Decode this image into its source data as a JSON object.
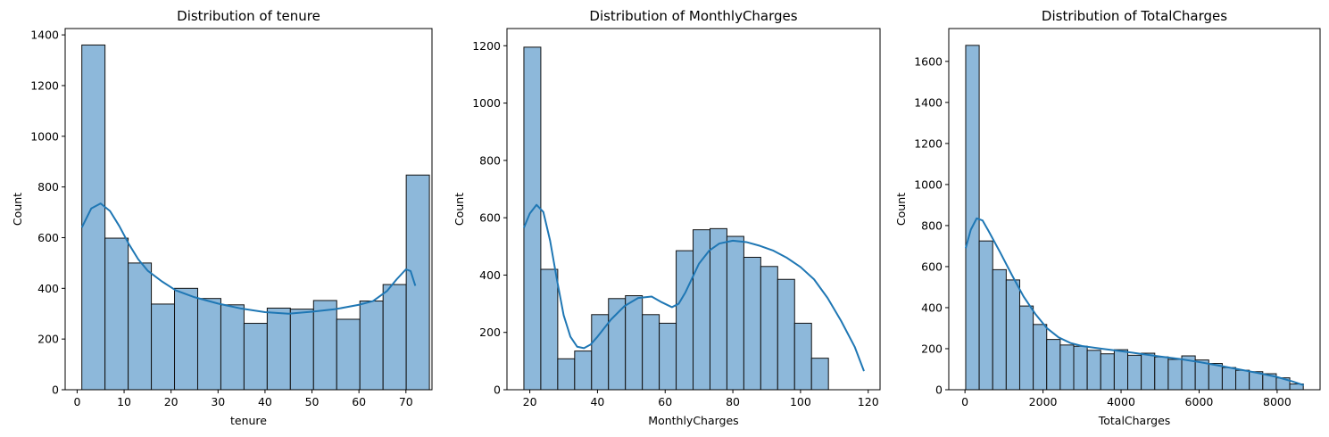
{
  "chart_data": [
    {
      "type": "histogram",
      "title": "Distribution of tenure",
      "xlabel": "tenure",
      "ylabel": "Count",
      "xlim": [
        -2.55,
        75.55
      ],
      "ylim": [
        0,
        1425
      ],
      "xticks": [
        0,
        10,
        20,
        30,
        40,
        50,
        60,
        70
      ],
      "yticks": [
        0,
        200,
        400,
        600,
        800,
        1000,
        1200,
        1400
      ],
      "bin_start": 1,
      "bin_width": 4.9333,
      "counts": [
        1360,
        598,
        500,
        338,
        400,
        360,
        335,
        262,
        322,
        318,
        352,
        278,
        350,
        415,
        847
      ],
      "kde": [
        [
          1,
          640
        ],
        [
          3,
          715
        ],
        [
          5,
          735
        ],
        [
          7,
          705
        ],
        [
          9,
          645
        ],
        [
          11,
          575
        ],
        [
          13,
          515
        ],
        [
          15,
          470
        ],
        [
          18,
          428
        ],
        [
          21,
          392
        ],
        [
          25,
          365
        ],
        [
          30,
          340
        ],
        [
          35,
          320
        ],
        [
          40,
          306
        ],
        [
          45,
          300
        ],
        [
          50,
          308
        ],
        [
          55,
          318
        ],
        [
          60,
          335
        ],
        [
          63,
          350
        ],
        [
          66,
          390
        ],
        [
          68,
          435
        ],
        [
          70,
          475
        ],
        [
          71,
          468
        ],
        [
          72,
          410
        ]
      ]
    },
    {
      "type": "histogram",
      "title": "Distribution of MonthlyCharges",
      "xlabel": "MonthlyCharges",
      "ylabel": "Count",
      "xlim": [
        13.25,
        123.5
      ],
      "ylim": [
        0,
        1260
      ],
      "xticks": [
        20,
        40,
        60,
        80,
        100,
        120
      ],
      "yticks": [
        0,
        200,
        400,
        600,
        800,
        1000,
        1200
      ],
      "bin_start": 18.25,
      "bin_width": 5.0,
      "counts": [
        1195,
        420,
        108,
        135,
        262,
        318,
        328,
        262,
        232,
        485,
        558,
        562,
        535,
        462,
        430,
        385,
        232,
        110
      ],
      "kde": [
        [
          18.25,
          565
        ],
        [
          20,
          615
        ],
        [
          22,
          645
        ],
        [
          24,
          620
        ],
        [
          26,
          520
        ],
        [
          28,
          385
        ],
        [
          30,
          260
        ],
        [
          32,
          185
        ],
        [
          34,
          150
        ],
        [
          36,
          145
        ],
        [
          38,
          158
        ],
        [
          40,
          185
        ],
        [
          44,
          245
        ],
        [
          48,
          292
        ],
        [
          52,
          320
        ],
        [
          56,
          325
        ],
        [
          59,
          305
        ],
        [
          62,
          288
        ],
        [
          64,
          300
        ],
        [
          66,
          340
        ],
        [
          68,
          390
        ],
        [
          70,
          440
        ],
        [
          73,
          485
        ],
        [
          76,
          510
        ],
        [
          80,
          520
        ],
        [
          84,
          515
        ],
        [
          88,
          502
        ],
        [
          92,
          485
        ],
        [
          96,
          460
        ],
        [
          100,
          428
        ],
        [
          104,
          385
        ],
        [
          108,
          320
        ],
        [
          112,
          240
        ],
        [
          116,
          150
        ],
        [
          118.75,
          65
        ]
      ]
    },
    {
      "type": "histogram",
      "title": "Distribution of TotalCharges",
      "xlabel": "TotalCharges",
      "ylabel": "Count",
      "xlim": [
        -415,
        9100
      ],
      "ylim": [
        0,
        1760
      ],
      "xticks": [
        0,
        2000,
        4000,
        6000,
        8000
      ],
      "yticks": [
        0,
        200,
        400,
        600,
        800,
        1000,
        1200,
        1400,
        1600
      ],
      "bin_start": 18.8,
      "bin_width": 346.04,
      "counts": [
        1678,
        725,
        585,
        535,
        408,
        318,
        245,
        218,
        212,
        192,
        175,
        195,
        168,
        178,
        160,
        148,
        165,
        145,
        128,
        108,
        95,
        88,
        78,
        58,
        28
      ],
      "kde": [
        [
          18.8,
          690
        ],
        [
          150,
          780
        ],
        [
          300,
          835
        ],
        [
          450,
          825
        ],
        [
          600,
          775
        ],
        [
          900,
          670
        ],
        [
          1200,
          560
        ],
        [
          1500,
          455
        ],
        [
          1800,
          370
        ],
        [
          2100,
          300
        ],
        [
          2400,
          255
        ],
        [
          2700,
          228
        ],
        [
          3000,
          213
        ],
        [
          3500,
          200
        ],
        [
          4000,
          188
        ],
        [
          4500,
          175
        ],
        [
          5000,
          162
        ],
        [
          5500,
          150
        ],
        [
          6000,
          135
        ],
        [
          6500,
          118
        ],
        [
          7000,
          100
        ],
        [
          7500,
          82
        ],
        [
          8000,
          62
        ],
        [
          8400,
          40
        ],
        [
          8684,
          22
        ]
      ]
    }
  ],
  "style": {
    "bar_fill": "#8db8da",
    "bar_edge": "#111111",
    "kde_color": "#1f77b4",
    "axes_color": "#000000"
  }
}
